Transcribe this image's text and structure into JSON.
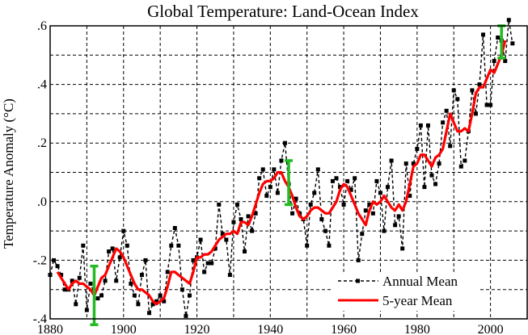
{
  "chart_data": {
    "type": "line",
    "title": "Global Temperature: Land-Ocean Index",
    "xlabel": "",
    "ylabel": "Temperature Anomaly (°C)",
    "xlim": [
      1880,
      2010
    ],
    "ylim": [
      -0.4,
      0.6
    ],
    "grid": true,
    "x_ticks": [
      1880,
      1900,
      1920,
      1940,
      1960,
      1980,
      2000
    ],
    "x_tick_labels": [
      "1880",
      "1900",
      "1920",
      "1940",
      "1960",
      "1980",
      "2000"
    ],
    "x_grid": [
      1890,
      1900,
      1910,
      1920,
      1930,
      1940,
      1950,
      1960,
      1970,
      1980,
      1990,
      2000
    ],
    "y_ticks": [
      -0.4,
      -0.2,
      0.0,
      0.2,
      0.4,
      0.6
    ],
    "y_tick_labels": [
      "-.4",
      "-.2",
      ".0",
      ".2",
      ".4",
      ".6"
    ],
    "y_grid": [
      -0.3,
      -0.2,
      -0.1,
      0.0,
      0.1,
      0.2,
      0.3,
      0.4,
      0.5
    ],
    "legend": {
      "position": "bottom-right",
      "entries": [
        "Annual Mean",
        "5-year Mean"
      ]
    },
    "series": [
      {
        "name": "Annual Mean",
        "style": "dashed-with-markers",
        "color": "#000000",
        "x": [
          1880,
          1881,
          1882,
          1883,
          1884,
          1885,
          1886,
          1887,
          1888,
          1889,
          1890,
          1891,
          1892,
          1893,
          1894,
          1895,
          1896,
          1897,
          1898,
          1899,
          1900,
          1901,
          1902,
          1903,
          1904,
          1905,
          1906,
          1907,
          1908,
          1909,
          1910,
          1911,
          1912,
          1913,
          1914,
          1915,
          1916,
          1917,
          1918,
          1919,
          1920,
          1921,
          1922,
          1923,
          1924,
          1925,
          1926,
          1927,
          1928,
          1929,
          1930,
          1931,
          1932,
          1933,
          1934,
          1935,
          1936,
          1937,
          1938,
          1939,
          1940,
          1941,
          1942,
          1943,
          1944,
          1945,
          1946,
          1947,
          1948,
          1949,
          1950,
          1951,
          1952,
          1953,
          1954,
          1955,
          1956,
          1957,
          1958,
          1959,
          1960,
          1961,
          1962,
          1963,
          1964,
          1965,
          1966,
          1967,
          1968,
          1969,
          1970,
          1971,
          1972,
          1973,
          1974,
          1975,
          1976,
          1977,
          1978,
          1979,
          1980,
          1981,
          1982,
          1983,
          1984,
          1985,
          1986,
          1987,
          1988,
          1989,
          1990,
          1991,
          1992,
          1993,
          1994,
          1995,
          1996,
          1997,
          1998,
          1999,
          2000,
          2001,
          2002,
          2003,
          2004,
          2005,
          2006
        ],
        "values": [
          -0.25,
          -0.2,
          -0.22,
          -0.25,
          -0.3,
          -0.3,
          -0.27,
          -0.35,
          -0.26,
          -0.15,
          -0.37,
          -0.28,
          -0.31,
          -0.33,
          -0.32,
          -0.27,
          -0.17,
          -0.16,
          -0.27,
          -0.19,
          -0.1,
          -0.15,
          -0.28,
          -0.32,
          -0.35,
          -0.25,
          -0.2,
          -0.38,
          -0.35,
          -0.34,
          -0.32,
          -0.34,
          -0.24,
          -0.15,
          -0.09,
          -0.15,
          -0.3,
          -0.39,
          -0.32,
          -0.2,
          -0.19,
          -0.13,
          -0.24,
          -0.21,
          -0.21,
          -0.16,
          -0.01,
          -0.11,
          -0.13,
          -0.25,
          -0.07,
          -0.01,
          -0.06,
          -0.17,
          -0.05,
          -0.1,
          -0.04,
          0.08,
          0.11,
          0.02,
          0.05,
          0.11,
          0.03,
          0.14,
          0.2,
          0.06,
          -0.04,
          0.01,
          -0.04,
          -0.06,
          -0.15,
          -0.01,
          0.03,
          0.11,
          -0.06,
          -0.1,
          -0.15,
          0.07,
          0.08,
          0.05,
          -0.01,
          0.07,
          0.04,
          0.08,
          -0.2,
          -0.11,
          -0.03,
          -0.01,
          -0.04,
          0.07,
          0.03,
          -0.1,
          0.05,
          0.14,
          -0.08,
          -0.05,
          -0.16,
          0.13,
          0.02,
          0.13,
          0.18,
          0.26,
          0.05,
          0.26,
          0.09,
          0.06,
          0.13,
          0.27,
          0.31,
          0.19,
          0.38,
          0.35,
          0.12,
          0.14,
          0.24,
          0.38,
          0.3,
          0.4,
          0.57,
          0.33,
          0.33,
          0.48,
          0.56,
          0.55,
          0.48,
          0.62,
          0.54
        ]
      },
      {
        "name": "5-year Mean",
        "style": "solid",
        "color": "#ff0000",
        "x": [
          1882,
          1883,
          1884,
          1885,
          1886,
          1887,
          1888,
          1889,
          1890,
          1891,
          1892,
          1893,
          1894,
          1895,
          1896,
          1897,
          1898,
          1899,
          1900,
          1901,
          1902,
          1903,
          1904,
          1905,
          1906,
          1907,
          1908,
          1909,
          1910,
          1911,
          1912,
          1913,
          1914,
          1915,
          1916,
          1917,
          1918,
          1919,
          1920,
          1921,
          1922,
          1923,
          1924,
          1925,
          1926,
          1927,
          1928,
          1929,
          1930,
          1931,
          1932,
          1933,
          1934,
          1935,
          1936,
          1937,
          1938,
          1939,
          1940,
          1941,
          1942,
          1943,
          1944,
          1945,
          1946,
          1947,
          1948,
          1949,
          1950,
          1951,
          1952,
          1953,
          1954,
          1955,
          1956,
          1957,
          1958,
          1959,
          1960,
          1961,
          1962,
          1963,
          1964,
          1965,
          1966,
          1967,
          1968,
          1969,
          1970,
          1971,
          1972,
          1973,
          1974,
          1975,
          1976,
          1977,
          1978,
          1979,
          1980,
          1981,
          1982,
          1983,
          1984,
          1985,
          1986,
          1987,
          1988,
          1989,
          1990,
          1991,
          1992,
          1993,
          1994,
          1995,
          1996,
          1997,
          1998,
          1999,
          2000,
          2001,
          2002,
          2003,
          2004
        ],
        "values": [
          -0.24,
          -0.26,
          -0.28,
          -0.3,
          -0.28,
          -0.27,
          -0.28,
          -0.28,
          -0.29,
          -0.3,
          -0.32,
          -0.29,
          -0.26,
          -0.25,
          -0.22,
          -0.19,
          -0.16,
          -0.17,
          -0.19,
          -0.22,
          -0.25,
          -0.28,
          -0.3,
          -0.3,
          -0.31,
          -0.32,
          -0.34,
          -0.35,
          -0.34,
          -0.33,
          -0.29,
          -0.24,
          -0.24,
          -0.25,
          -0.26,
          -0.27,
          -0.28,
          -0.24,
          -0.19,
          -0.19,
          -0.18,
          -0.18,
          -0.17,
          -0.15,
          -0.13,
          -0.12,
          -0.11,
          -0.11,
          -0.1,
          -0.11,
          -0.07,
          -0.07,
          -0.08,
          -0.05,
          -0.01,
          0.03,
          0.06,
          0.07,
          0.07,
          0.08,
          0.1,
          0.1,
          0.07,
          0.05,
          0.02,
          -0.02,
          -0.05,
          -0.06,
          -0.05,
          -0.03,
          -0.02,
          -0.02,
          -0.03,
          -0.04,
          -0.04,
          -0.02,
          0.0,
          0.04,
          0.06,
          0.05,
          0.02,
          -0.01,
          -0.04,
          -0.06,
          -0.08,
          -0.03,
          0.0,
          -0.01,
          0.0,
          0.02,
          0.0,
          -0.02,
          -0.03,
          -0.01,
          -0.03,
          0.0,
          0.06,
          0.12,
          0.13,
          0.16,
          0.16,
          0.14,
          0.12,
          0.15,
          0.16,
          0.18,
          0.24,
          0.3,
          0.27,
          0.24,
          0.24,
          0.25,
          0.24,
          0.3,
          0.37,
          0.39,
          0.39,
          0.42,
          0.45,
          0.44,
          0.47,
          0.5,
          0.55
        ]
      }
    ],
    "error_bars": [
      {
        "x": 1892,
        "low": -0.42,
        "high": -0.22
      },
      {
        "x": 1945,
        "low": -0.01,
        "high": 0.14
      },
      {
        "x": 2003,
        "low": 0.49,
        "high": 0.6
      }
    ],
    "error_bar_color": "#22bb22"
  }
}
